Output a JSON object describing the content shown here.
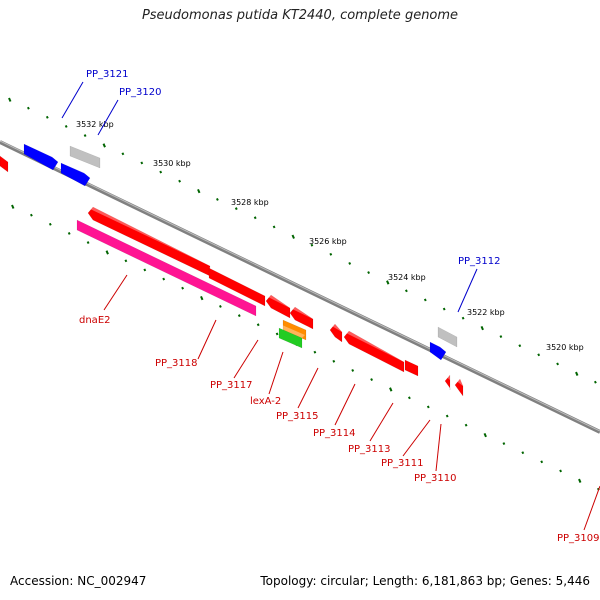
{
  "title": "Pseudomonas putida KT2440, complete genome",
  "footer": {
    "accession": "Accession: NC_002947",
    "summary": "Topology: circular; Length: 6,181,863 bp; Genes: 5,446"
  },
  "colors": {
    "forward_gene": "#0000ff",
    "reverse_gene": "#ff0000",
    "rna_gene": "#ff1493",
    "pseudo_gene": "#c0c0c0",
    "regulatory": "#ff8c00",
    "misc": "#22cc22",
    "backbone": "#808080",
    "tick": "#006400",
    "forward_label": "#0000cc",
    "reverse_label": "#cc0000"
  },
  "ruler": {
    "ticks": [
      "3532 kbp",
      "3530 kbp",
      "3528 kbp",
      "3526 kbp",
      "3524 kbp",
      "3522 kbp",
      "3520 kbp"
    ]
  },
  "labels": {
    "forward": [
      "PP_3121",
      "PP_3120",
      "PP_3112"
    ],
    "reverse": [
      "dnaE2",
      "PP_3118",
      "PP_3117",
      "lexA-2",
      "PP_3115",
      "PP_3114",
      "PP_3113",
      "PP_3111",
      "PP_3110",
      "PP_3109"
    ]
  }
}
